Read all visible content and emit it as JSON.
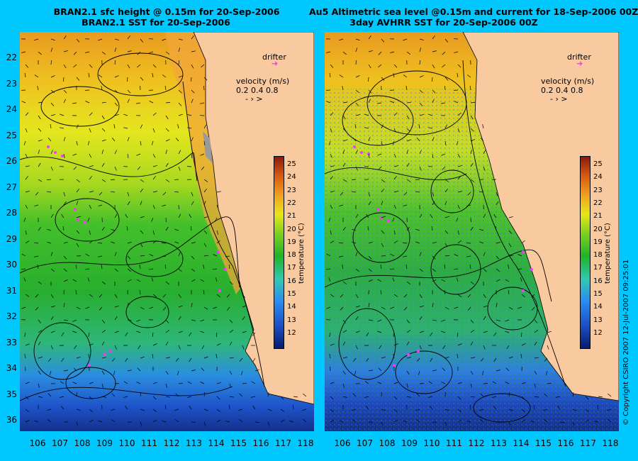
{
  "left": {
    "title1": "BRAN2.1 sfc height @ 0.15m for 20-Sep-2006",
    "title2": "BRAN2.1 SST for 20-Sep-2006"
  },
  "right": {
    "title1": "Au5 Altimetric sea level  @0.15m and current for 18-Sep-2006 00Z",
    "title2": "3day AVHRR SST for 20-Sep-2006 00Z"
  },
  "legend": {
    "drifter": "drifter",
    "velocity_label": "velocity (m/s)",
    "velocity_values": "0.2 0.4 0.8"
  },
  "colorbar": {
    "title": "temperature (°C)",
    "ticks": [
      "25",
      "24",
      "23",
      "22",
      "21",
      "20",
      "19",
      "18",
      "17",
      "16",
      "15",
      "14",
      "13",
      "12"
    ]
  },
  "latitudes": [
    "22",
    "23",
    "24",
    "25",
    "26",
    "27",
    "28",
    "29",
    "30",
    "31",
    "32",
    "33",
    "34",
    "35",
    "36"
  ],
  "longitudes": [
    "106",
    "107",
    "108",
    "109",
    "110",
    "111",
    "112",
    "113",
    "114",
    "115",
    "116",
    "117",
    "118"
  ],
  "copyright": "© Copyright CSIRO 2007   12-Jul-2007 09:25:01",
  "colors": {
    "background": "#00c8ff",
    "land": "#f9c9a0",
    "drifter": "#ff33ff"
  }
}
